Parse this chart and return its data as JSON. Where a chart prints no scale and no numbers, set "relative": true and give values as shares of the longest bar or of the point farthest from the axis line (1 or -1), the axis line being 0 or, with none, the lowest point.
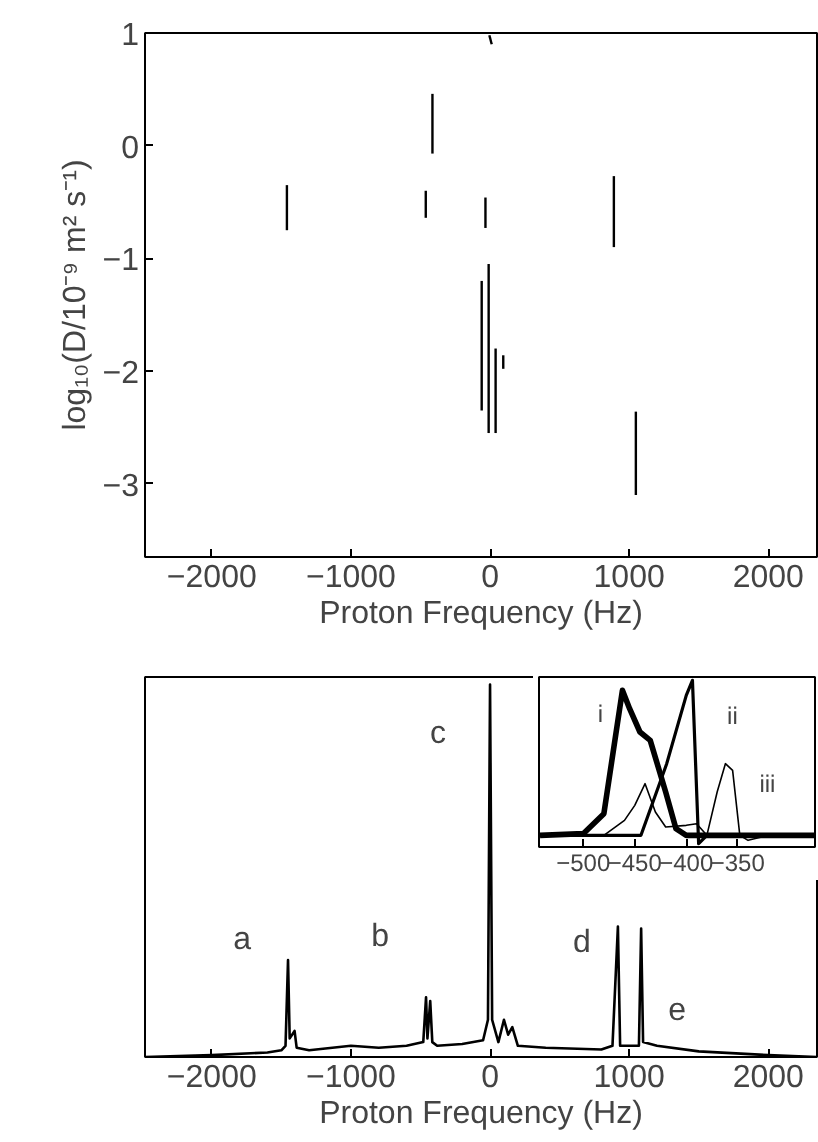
{
  "chart_data": [
    {
      "type": "line",
      "xlabel": "Proton Frequency (Hz)",
      "ylabel": "log₁₀(D/10⁻⁹ m² s⁻¹)",
      "xlim": [
        -2480,
        2350
      ],
      "ylim": [
        -3.65,
        1
      ],
      "xticks": [
        -2000,
        -1000,
        0,
        1000,
        2000
      ],
      "yticks": [
        -3,
        -2,
        -1,
        0,
        1
      ],
      "grid": false,
      "series": [
        {
          "color": "#000000",
          "x": [
            -1460,
            -1460
          ],
          "values": [
            -0.35,
            -0.75
          ]
        },
        {
          "color": "#000000",
          "x": [
            -414,
            -414
          ],
          "values": [
            0.46,
            -0.07
          ]
        },
        {
          "color": "#000000",
          "x": [
            -462,
            -462
          ],
          "values": [
            -0.4,
            -0.64
          ]
        },
        {
          "color": "#000000",
          "x": [
            -33,
            -33
          ],
          "values": [
            -0.46,
            -0.73
          ]
        },
        {
          "color": "#000000",
          "x": [
            -5,
            12
          ],
          "values": [
            0.98,
            0.9
          ]
        },
        {
          "color": "#000000",
          "x": [
            -60,
            -60
          ],
          "values": [
            -1.2,
            -2.35
          ]
        },
        {
          "color": "#000000",
          "x": [
            -10,
            -10
          ],
          "values": [
            -1.05,
            -2.55
          ]
        },
        {
          "color": "#000000",
          "x": [
            40,
            40
          ],
          "values": [
            -1.8,
            -2.55
          ]
        },
        {
          "color": "#000000",
          "x": [
            95,
            95
          ],
          "values": [
            -1.86,
            -1.98
          ]
        },
        {
          "color": "#000000",
          "x": [
            890,
            890
          ],
          "values": [
            -0.27,
            -0.9
          ]
        },
        {
          "color": "#000000",
          "x": [
            1048,
            1048
          ],
          "values": [
            -2.36,
            -3.1
          ]
        }
      ]
    },
    {
      "type": "line",
      "relative": true,
      "xlabel": "Proton Frequency (Hz)",
      "xlim": [
        -2480,
        2350
      ],
      "xticks": [
        -2000,
        -1000,
        0,
        1000,
        2000
      ],
      "tick_labels": "x",
      "grid": false,
      "series": [
        {
          "color": "#000000",
          "x": [
            -2480,
            -2000,
            -1600,
            -1500,
            -1470,
            -1452,
            -1440,
            -1405,
            -1390,
            -1300,
            -1000,
            -800,
            -600,
            -480,
            -460,
            -450,
            -430,
            -415,
            -380,
            -200,
            -50,
            -15,
            0,
            15,
            60,
            100,
            130,
            160,
            200,
            400,
            800,
            880,
            919,
            935,
            1000,
            1070,
            1086,
            1100,
            1200,
            1500,
            2000,
            2350
          ],
          "values": [
            0,
            0.005,
            0.012,
            0.018,
            0.03,
            0.26,
            0.05,
            0.07,
            0.025,
            0.018,
            0.03,
            0.025,
            0.03,
            0.04,
            0.16,
            0.05,
            0.15,
            0.04,
            0.03,
            0.035,
            0.045,
            0.1,
            1.0,
            0.1,
            0.04,
            0.1,
            0.06,
            0.08,
            0.03,
            0.025,
            0.02,
            0.03,
            0.35,
            0.03,
            0.03,
            0.03,
            0.345,
            0.04,
            0.03,
            0.015,
            0.005,
            0
          ]
        }
      ],
      "annotations": [
        {
          "text": "a",
          "x": -1452,
          "y": 0.26
        },
        {
          "text": "b",
          "x": -460,
          "y": 0.16
        },
        {
          "text": "c",
          "x": 0,
          "y": 1.0
        },
        {
          "text": "d",
          "x": 919,
          "y": 0.35
        },
        {
          "text": "e",
          "x": 1086,
          "y": 0.345
        }
      ]
    },
    {
      "type": "line",
      "relative": true,
      "xlim": [
        -543,
        -275
      ],
      "xticks": [
        -500,
        -450,
        -400,
        -350
      ],
      "tick_labels": "x",
      "grid": false,
      "series": [
        {
          "color": "#000000",
          "x": [
            -542,
            -500,
            -480,
            -462,
            -455,
            -445,
            -435,
            -420,
            -410,
            -400,
            -275
          ],
          "values": [
            0.07,
            0.08,
            0.2,
            0.94,
            0.83,
            0.69,
            0.64,
            0.33,
            0.11,
            0.07,
            0.07
          ]
        },
        {
          "color": "#000000",
          "x": [
            -542,
            -450,
            -444,
            -419,
            -400,
            -394,
            -388,
            -380,
            -275
          ],
          "values": [
            0.07,
            0.07,
            0.07,
            0.5,
            0.91,
            1.0,
            0.02,
            0.07,
            0.07
          ]
        },
        {
          "color": "#000000",
          "x": [
            -542,
            -480,
            -460,
            -450,
            -440,
            -430,
            -420,
            -400,
            -390,
            -380,
            -370,
            -362,
            -355,
            -348,
            -340,
            -320,
            -275
          ],
          "values": [
            0.07,
            0.07,
            0.16,
            0.25,
            0.38,
            0.21,
            0.12,
            0.13,
            0.14,
            0.07,
            0.33,
            0.5,
            0.46,
            0.07,
            0.04,
            0.07,
            0.07
          ]
        }
      ],
      "annotations": [
        {
          "text": "i",
          "x": -462,
          "y": 0.94
        },
        {
          "text": "ii",
          "x": -394,
          "y": 1.0
        },
        {
          "text": "iii",
          "x": -362,
          "y": 0.5
        }
      ]
    }
  ]
}
